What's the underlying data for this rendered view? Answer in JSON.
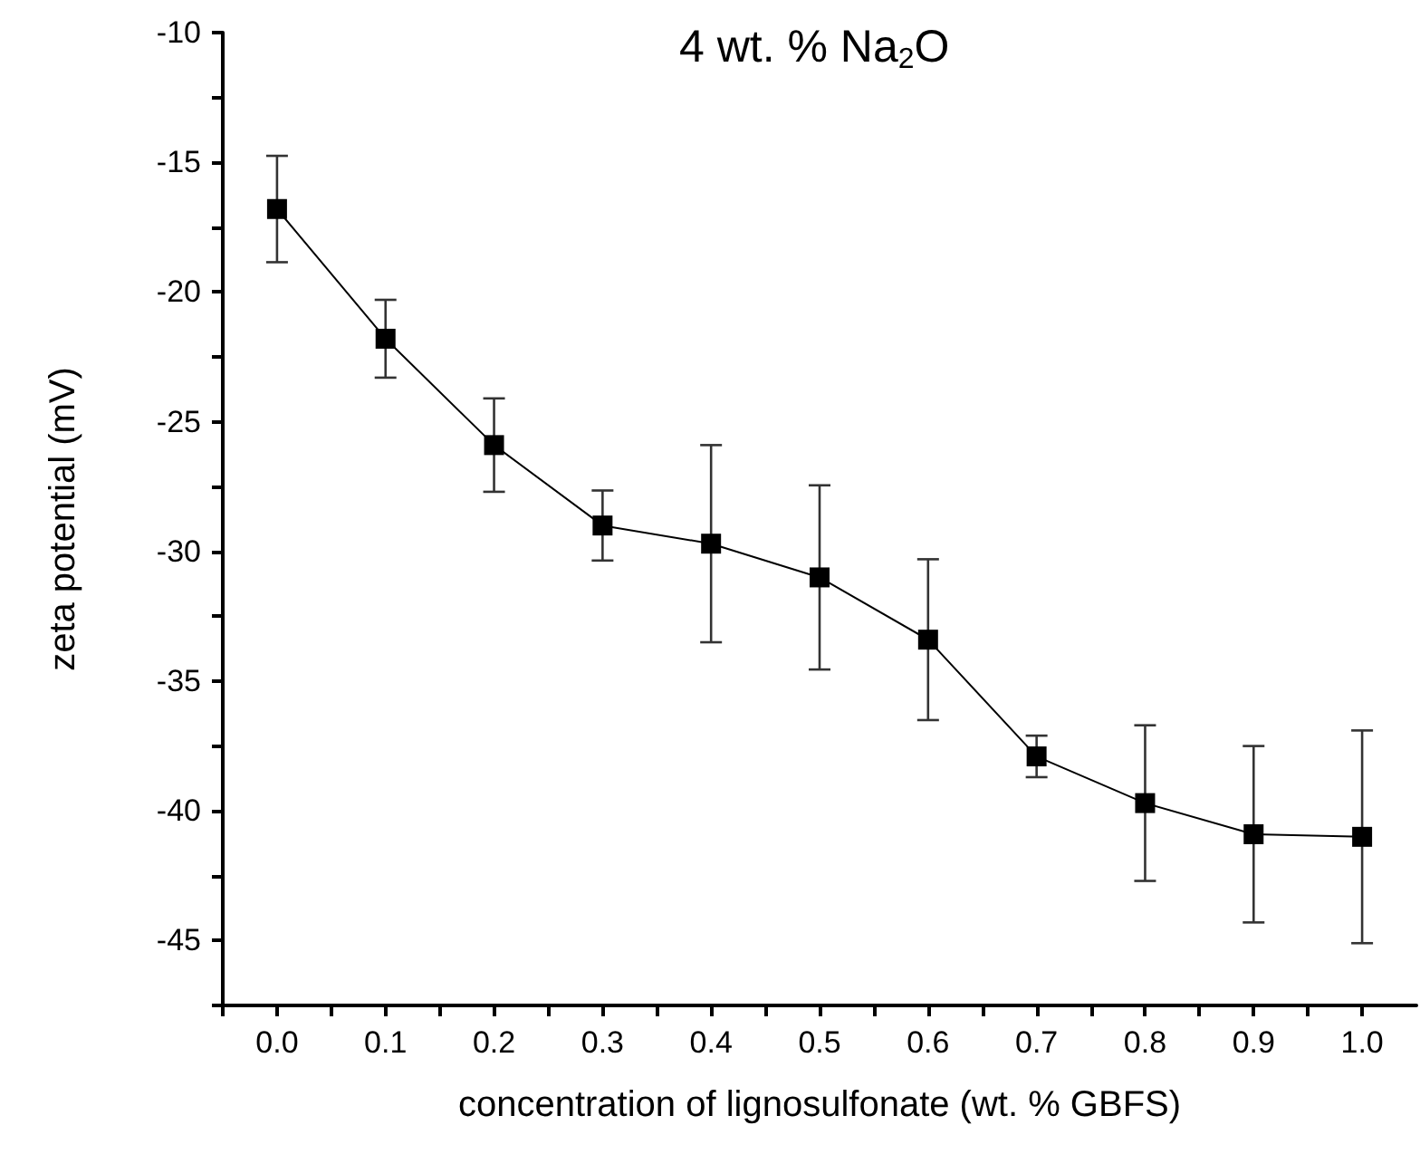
{
  "chart_data": {
    "type": "line",
    "title": "4 wt. % Na$_{2}$O",
    "xlabel": "concentration of lignosulfonate (wt. % GBFS)",
    "ylabel": "zeta potential (mV)",
    "x": [
      0,
      0.1,
      0.2,
      0.3,
      0.4,
      0.5,
      0.6,
      0.7,
      0.8,
      0.9,
      1.0
    ],
    "series": [
      {
        "color": "#000000",
        "values": [
          -16.8,
          -21.8,
          -25.9,
          -29.0,
          -29.7,
          -31.0,
          -33.4,
          -37.9,
          -39.7,
          -40.9,
          -41.0
        ],
        "errors": [
          2.05,
          1.5,
          1.8,
          1.35,
          3.8,
          3.55,
          3.1,
          0.8,
          3.0,
          3.4,
          4.1
        ]
      }
    ],
    "xlim": [
      -0.05,
      1.05
    ],
    "ylim": [
      -47.5,
      -10
    ],
    "xticks": [
      {
        "value": -0.05,
        "label": null
      },
      {
        "value": 0,
        "label": "0.0"
      },
      {
        "value": 0.05,
        "label": null
      },
      {
        "value": 0.1,
        "label": "0.1"
      },
      {
        "value": 0.15,
        "label": null
      },
      {
        "value": 0.2,
        "label": "0.2"
      },
      {
        "value": 0.25,
        "label": null
      },
      {
        "value": 0.3,
        "label": "0.3"
      },
      {
        "value": 0.35,
        "label": null
      },
      {
        "value": 0.4,
        "label": "0.4"
      },
      {
        "value": 0.45,
        "label": null
      },
      {
        "value": 0.5,
        "label": "0.5"
      },
      {
        "value": 0.55,
        "label": null
      },
      {
        "value": 0.6,
        "label": "0.6"
      },
      {
        "value": 0.65,
        "label": null
      },
      {
        "value": 0.7,
        "label": "0.7"
      },
      {
        "value": 0.75,
        "label": null
      },
      {
        "value": 0.8,
        "label": "0.8"
      },
      {
        "value": 0.85,
        "label": null
      },
      {
        "value": 0.9,
        "label": "0.9"
      },
      {
        "value": 0.95,
        "label": null
      },
      {
        "value": 1.0,
        "label": "1.0"
      }
    ],
    "yticks": [
      -10,
      {
        "value": -12.5,
        "label": null
      },
      -15,
      {
        "value": -17.5,
        "label": null
      },
      -20,
      {
        "value": -22.5,
        "label": null
      },
      -25,
      {
        "value": -27.5,
        "label": null
      },
      -30,
      {
        "value": -32.5,
        "label": null
      },
      -35,
      {
        "value": -37.5,
        "label": null
      },
      -40,
      {
        "value": -42.5,
        "label": null
      },
      -45,
      {
        "value": -47.5,
        "label": null
      }
    ],
    "marker": "square",
    "line_style": "solid",
    "grid": false
  }
}
